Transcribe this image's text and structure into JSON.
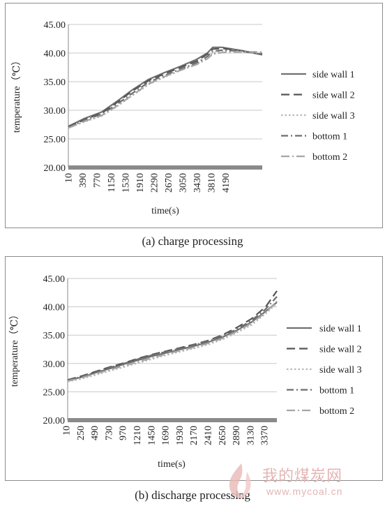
{
  "chart_data": [
    {
      "type": "line",
      "ylabel": "temperature（℃）",
      "xlabel": "time(s)",
      "caption": "(a) charge processing",
      "ylim": [
        20,
        45
      ],
      "yticks": [
        "20.00",
        "25.00",
        "30.00",
        "35.00",
        "40.00",
        "45.00"
      ],
      "xlim": [
        10,
        4600
      ],
      "xtick_labels": [
        "10",
        "390",
        "770",
        "1150",
        "1530",
        "1910",
        "2290",
        "2670",
        "3050",
        "3430",
        "3810",
        "4190"
      ],
      "grid": "horizontal",
      "legend_position": "right",
      "series": [
        {
          "name": "side wall 1",
          "x": [
            10,
            400,
            800,
            1150,
            1530,
            1910,
            2290,
            2670,
            3050,
            3300,
            3430,
            3650,
            3900,
            4200,
            4600
          ],
          "y": [
            27.2,
            28.6,
            29.7,
            31.5,
            33.6,
            35.4,
            36.6,
            37.7,
            38.9,
            40.0,
            41.0,
            41.0,
            40.7,
            40.3,
            39.7
          ]
        },
        {
          "name": "side wall 2",
          "x": [
            10,
            400,
            800,
            1150,
            1530,
            1910,
            2290,
            2670,
            3050,
            3300,
            3430,
            3650,
            3900,
            4200,
            4600
          ],
          "y": [
            27.1,
            28.4,
            29.5,
            31.3,
            33.4,
            35.2,
            36.4,
            37.5,
            38.6,
            39.8,
            40.7,
            40.8,
            40.6,
            40.3,
            39.9
          ]
        },
        {
          "name": "side wall 3",
          "x": [
            10,
            400,
            800,
            1150,
            1530,
            1910,
            2290,
            2670,
            3050,
            3300,
            3430,
            3650,
            3900,
            4200,
            4600
          ],
          "y": [
            26.9,
            28.0,
            29.0,
            30.6,
            32.6,
            34.5,
            35.8,
            37.0,
            38.1,
            39.2,
            40.0,
            40.4,
            40.4,
            40.2,
            40.0
          ]
        },
        {
          "name": "bottom 1",
          "x": [
            10,
            400,
            800,
            1150,
            1530,
            1910,
            2290,
            2670,
            3050,
            3300,
            3430,
            3650,
            3900,
            4200,
            4600
          ],
          "y": [
            27.0,
            28.3,
            29.3,
            31.0,
            33.0,
            34.9,
            36.1,
            37.2,
            38.3,
            39.4,
            40.3,
            40.5,
            40.4,
            40.2,
            39.8
          ]
        },
        {
          "name": "bottom 2",
          "x": [
            10,
            400,
            800,
            1150,
            1530,
            1910,
            2290,
            2670,
            3050,
            3300,
            3430,
            3650,
            3900,
            4200,
            4600
          ],
          "y": [
            26.9,
            28.1,
            29.1,
            30.7,
            32.7,
            34.6,
            35.9,
            37.0,
            38.0,
            39.0,
            39.8,
            40.1,
            40.2,
            40.2,
            40.2
          ]
        }
      ]
    },
    {
      "type": "line",
      "ylabel": "temperature（℃）",
      "xlabel": "time(s)",
      "caption": "(b) discharge processing",
      "ylim": [
        20,
        45
      ],
      "yticks": [
        "20.00",
        "25.00",
        "30.00",
        "35.00",
        "40.00",
        "45.00"
      ],
      "xlim": [
        10,
        3560
      ],
      "xtick_labels": [
        "10",
        "250",
        "490",
        "730",
        "970",
        "1210",
        "1450",
        "1690",
        "1930",
        "2170",
        "2410",
        "2650",
        "2890",
        "3130",
        "3370"
      ],
      "grid": "horizontal",
      "legend_position": "right",
      "series": [
        {
          "name": "side wall 1",
          "x": [
            10,
            250,
            490,
            730,
            970,
            1210,
            1450,
            1690,
            1930,
            2170,
            2410,
            2650,
            2890,
            3130,
            3370,
            3560
          ],
          "y": [
            27.0,
            27.6,
            28.4,
            29.1,
            29.9,
            30.6,
            31.3,
            31.9,
            32.5,
            33.1,
            33.8,
            34.7,
            35.9,
            37.3,
            39.2,
            40.8
          ]
        },
        {
          "name": "side wall 2",
          "x": [
            10,
            250,
            490,
            730,
            970,
            1210,
            1450,
            1690,
            1930,
            2170,
            2410,
            2650,
            2890,
            3130,
            3370,
            3560
          ],
          "y": [
            27.1,
            27.8,
            28.6,
            29.4,
            30.1,
            30.9,
            31.6,
            32.2,
            32.8,
            33.4,
            34.1,
            35.1,
            36.4,
            37.9,
            40.0,
            42.8
          ]
        },
        {
          "name": "side wall 3",
          "x": [
            10,
            250,
            490,
            730,
            970,
            1210,
            1450,
            1690,
            1930,
            2170,
            2410,
            2650,
            2890,
            3130,
            3370,
            3560
          ],
          "y": [
            26.8,
            27.3,
            28.0,
            28.7,
            29.4,
            30.1,
            30.8,
            31.5,
            32.1,
            32.7,
            33.4,
            34.3,
            35.5,
            36.8,
            38.8,
            40.6
          ]
        },
        {
          "name": "bottom 1",
          "x": [
            10,
            250,
            490,
            730,
            970,
            1210,
            1450,
            1690,
            1930,
            2170,
            2410,
            2650,
            2890,
            3130,
            3370,
            3560
          ],
          "y": [
            27.0,
            27.7,
            28.5,
            29.3,
            30.0,
            30.8,
            31.5,
            32.1,
            32.7,
            33.3,
            34.0,
            34.9,
            36.1,
            37.6,
            39.6,
            41.8
          ]
        },
        {
          "name": "bottom 2",
          "x": [
            10,
            250,
            490,
            730,
            970,
            1210,
            1450,
            1690,
            1930,
            2170,
            2410,
            2650,
            2890,
            3130,
            3370,
            3560
          ],
          "y": [
            26.9,
            27.5,
            28.2,
            28.9,
            29.6,
            30.3,
            31.0,
            31.7,
            32.3,
            32.9,
            33.6,
            34.5,
            35.7,
            37.1,
            39.0,
            41.0
          ]
        }
      ]
    }
  ],
  "series_styles": [
    {
      "color": "#707070",
      "dash": "",
      "width": 2.2
    },
    {
      "color": "#555555",
      "dash": "12 6",
      "width": 2.2
    },
    {
      "color": "#b8b8b8",
      "dash": "2.5 3",
      "width": 2.2
    },
    {
      "color": "#6e6e6e",
      "dash": "10 4 2 4",
      "width": 2.2
    },
    {
      "color": "#a5a5a5",
      "dash": "12 4 2 4",
      "width": 2.2
    }
  ],
  "watermark": {
    "text_cn": "我的煤炭网",
    "url": "www.mycoal.cn"
  }
}
